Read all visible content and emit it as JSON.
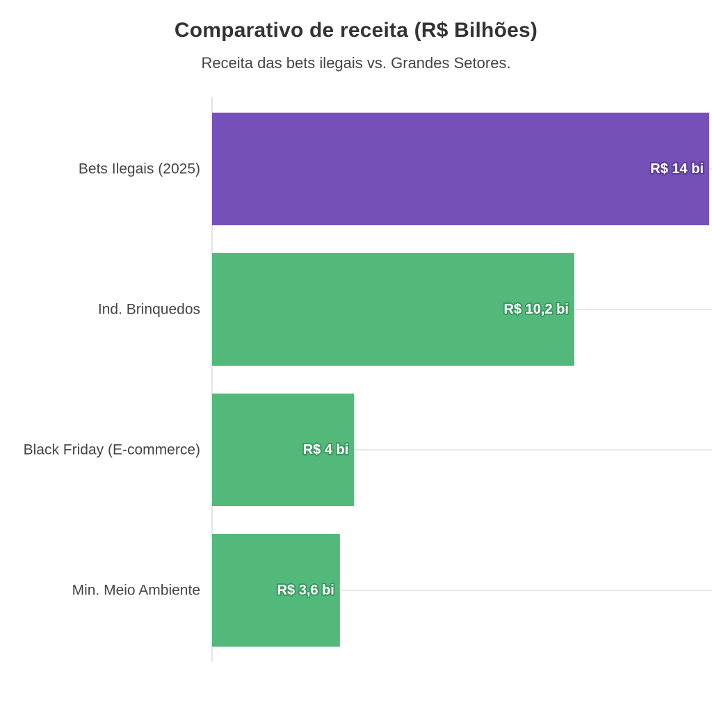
{
  "chart_data": {
    "type": "bar",
    "orientation": "horizontal",
    "title": "Comparativo de receita (R$ Bilhões)",
    "subtitle": "Receita das bets ilegais vs. Grandes Setores.",
    "xlabel": "",
    "ylabel": "",
    "categories": [
      "Bets Ilegais (2025)",
      "Ind. Brinquedos",
      "Black Friday (E-commerce)",
      "Min. Meio Ambiente"
    ],
    "values": [
      14,
      10.2,
      4,
      3.6
    ],
    "data_labels": [
      "R$ 14 bi",
      "R$ 10,2 bi",
      "R$ 4 bi",
      "R$ 3,6 bi"
    ],
    "colors": [
      "#7450b8",
      "#52b97b",
      "#52b97b",
      "#52b97b"
    ],
    "label_outline_colors": [
      "#5a3c96",
      "#3a9a5e",
      "#3a9a5e",
      "#3a9a5e"
    ],
    "xlim": [
      0,
      14
    ],
    "grid": true,
    "legend": "none"
  }
}
